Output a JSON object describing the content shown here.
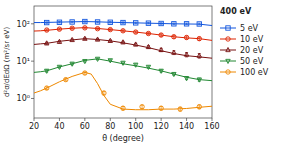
{
  "chart_data": {
    "type": "scatter",
    "title": "400 eV",
    "x_label": "θ (degree)",
    "y_label": "d²σ/dEdΩ  (m²/sr eV)",
    "xlim": [
      20,
      160
    ],
    "xticks": [
      20,
      40,
      60,
      80,
      100,
      120,
      140,
      160
    ],
    "ylim": [
      0.3,
      300
    ],
    "yticks": [
      {
        "value": 1,
        "label": "10⁰"
      },
      {
        "value": 10,
        "label": "10¹"
      },
      {
        "value": 100,
        "label": "10²"
      }
    ],
    "log": "y",
    "grid": false,
    "legend": "right",
    "series": [
      {
        "name": "5 eV",
        "color": "#1155dd",
        "marker": "square",
        "x": [
          30,
          40,
          50,
          60,
          70,
          80,
          90,
          100,
          110,
          120,
          130,
          140,
          150
        ],
        "values": [
          108,
          110,
          112,
          115,
          112,
          110,
          108,
          106,
          104,
          102,
          100,
          100,
          99
        ],
        "errors": [
          5,
          5,
          5,
          5,
          5,
          5,
          5,
          5,
          5,
          5,
          5,
          5,
          5
        ],
        "curve_x": [
          20,
          25,
          30,
          40,
          50,
          60,
          70,
          80,
          90,
          100,
          110,
          120,
          130,
          140,
          150,
          160
        ],
        "curve_values": [
          108,
          108,
          109,
          111,
          113,
          115,
          113,
          110,
          108,
          106,
          104,
          102,
          100,
          99,
          98,
          90
        ]
      },
      {
        "name": "10 eV",
        "color": "#dd2200",
        "marker": "circle",
        "x": [
          30,
          40,
          50,
          60,
          70,
          80,
          90,
          100,
          110,
          120,
          130,
          140,
          150
        ],
        "values": [
          68,
          72,
          76,
          78,
          74,
          70,
          65,
          60,
          55,
          50,
          45,
          43,
          40
        ],
        "errors": [
          4,
          4,
          4,
          4,
          4,
          4,
          4,
          4,
          4,
          4,
          4,
          4,
          4
        ],
        "curve_x": [
          20,
          25,
          30,
          40,
          50,
          60,
          70,
          80,
          90,
          100,
          110,
          120,
          130,
          140,
          150,
          160
        ],
        "curve_values": [
          64,
          65,
          67,
          72,
          76,
          79,
          75,
          70,
          65,
          60,
          55,
          50,
          45,
          42,
          40,
          36
        ]
      },
      {
        "name": "20 eV",
        "color": "#771111",
        "marker": "triangle-up",
        "x": [
          30,
          40,
          50,
          60,
          70,
          80,
          90,
          100,
          110,
          120,
          130,
          140,
          150
        ],
        "values": [
          30,
          33,
          37,
          40,
          38,
          35,
          32,
          28,
          24,
          20,
          17,
          15,
          14
        ],
        "errors": [
          2,
          2,
          2,
          2,
          2,
          2,
          2,
          2,
          2,
          2,
          2,
          2,
          2
        ],
        "curve_x": [
          20,
          25,
          30,
          40,
          50,
          60,
          70,
          80,
          90,
          100,
          110,
          120,
          130,
          140,
          150,
          160
        ],
        "curve_values": [
          28,
          29,
          30,
          34,
          37,
          40,
          38,
          35,
          31,
          27,
          23,
          19,
          16,
          14,
          13,
          12
        ]
      },
      {
        "name": "50 eV",
        "color": "#228833",
        "marker": "triangle-down",
        "x": [
          30,
          40,
          50,
          60,
          70,
          80,
          90,
          100,
          110,
          120,
          130,
          140,
          150
        ],
        "values": [
          5.5,
          7.0,
          8.5,
          10.0,
          11.5,
          10.5,
          9.0,
          8.0,
          7.0,
          5.5,
          4.5,
          3.5,
          3.2
        ],
        "errors": [
          0.4,
          0.4,
          0.5,
          0.5,
          0.6,
          0.5,
          0.5,
          0.5,
          0.4,
          0.4,
          0.3,
          0.3,
          0.3
        ],
        "curve_x": [
          20,
          25,
          30,
          40,
          50,
          60,
          70,
          80,
          90,
          100,
          110,
          120,
          130,
          140,
          150,
          160
        ],
        "curve_values": [
          5.0,
          5.2,
          5.5,
          7.0,
          8.5,
          10.5,
          11.5,
          10.0,
          8.5,
          7.5,
          6.5,
          5.5,
          4.5,
          3.7,
          3.2,
          3.0
        ]
      },
      {
        "name": "100 eV",
        "color": "#ee8800",
        "marker": "circle",
        "x": [
          30,
          45,
          60,
          75,
          90,
          105,
          120,
          135,
          150
        ],
        "values": [
          1.9,
          3.2,
          4.8,
          1.4,
          0.55,
          0.6,
          0.55,
          0.52,
          0.6
        ],
        "errors": [
          0.15,
          0.25,
          0.35,
          0.15,
          0.06,
          0.06,
          0.06,
          0.06,
          0.07
        ],
        "curve_x": [
          20,
          25,
          30,
          40,
          50,
          60,
          65,
          70,
          75,
          80,
          90,
          100,
          110,
          120,
          130,
          140,
          150,
          160
        ],
        "curve_values": [
          1.4,
          1.6,
          1.9,
          2.8,
          3.9,
          5.0,
          4.5,
          2.5,
          1.2,
          0.7,
          0.52,
          0.5,
          0.5,
          0.52,
          0.52,
          0.54,
          0.58,
          0.62
        ]
      }
    ]
  }
}
